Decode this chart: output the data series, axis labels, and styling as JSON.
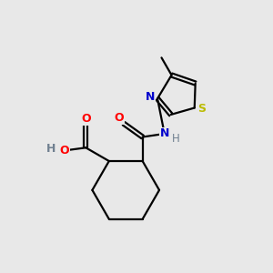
{
  "bg_color": "#e8e8e8",
  "bond_color": "#000000",
  "N_color": "#0000cc",
  "O_color": "#ff0000",
  "S_color": "#bbbb00",
  "C_color": "#000000",
  "H_color": "#708090",
  "lw": 1.6,
  "xlim": [
    0,
    10
  ],
  "ylim": [
    0,
    10
  ]
}
